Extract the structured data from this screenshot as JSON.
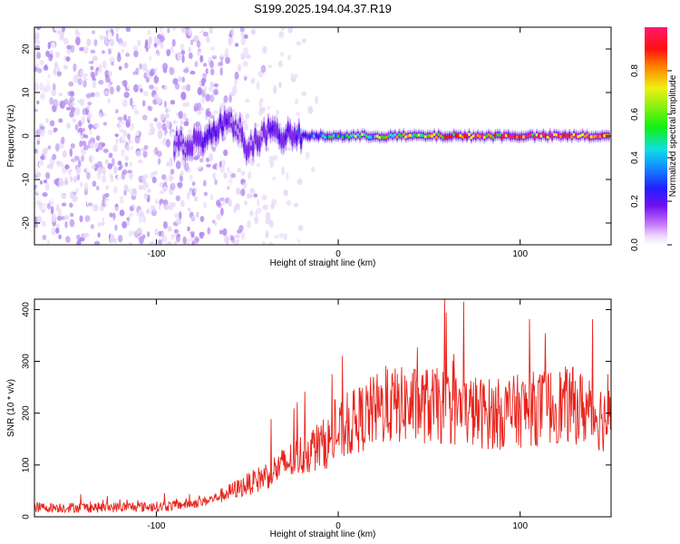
{
  "title": "S199.2025.194.04.37.R19",
  "colors": {
    "snr_line": "#e8241c",
    "spectrogram_colormap": [
      "#ffffff",
      "#e7d8f8",
      "#b48af0",
      "#7a28e8",
      "#4a10f0",
      "#2050ff",
      "#1fd8f0",
      "#22e020",
      "#f0f010",
      "#ff8c00",
      "#ff1010",
      "#ff1a6c"
    ]
  },
  "chart_data": [
    {
      "type": "heatmap",
      "title": "",
      "xlabel": "Height of straight line (km)",
      "ylabel": "Frequency (Hz)",
      "xlim": [
        -167,
        150
      ],
      "ylim": [
        -25,
        25
      ],
      "xticks": [
        -100,
        0,
        100
      ],
      "yticks": [
        -20,
        -10,
        0,
        10,
        20
      ],
      "colorbar": {
        "label": "Normalized spectral amplitude",
        "range": [
          0,
          1
        ],
        "ticks": [
          0.0,
          0.2,
          0.4,
          0.6,
          0.8
        ]
      },
      "ridge": {
        "description_points_x": [
          -85,
          -70,
          -60,
          -55,
          -50,
          -40,
          -30,
          -20,
          0,
          50,
          100,
          150
        ],
        "center_freq_hz": [
          -2,
          0,
          4,
          2,
          -3,
          1,
          0,
          0,
          0,
          0,
          0,
          0
        ],
        "peak_amplitude": [
          0.25,
          0.35,
          0.3,
          0.2,
          0.25,
          0.3,
          0.3,
          0.4,
          0.55,
          0.75,
          0.9,
          0.9
        ]
      }
    },
    {
      "type": "line",
      "title": "",
      "xlabel": "Height of straight line (km)",
      "ylabel": "SNR (10 * v/v)",
      "xlim": [
        -167,
        150
      ],
      "ylim": [
        0,
        420
      ],
      "xticks": [
        -100,
        0,
        100
      ],
      "yticks": [
        0,
        100,
        200,
        300,
        400
      ],
      "series": [
        {
          "x": [
            -167,
            -150,
            -130,
            -110,
            -95,
            -85,
            -75,
            -65,
            -55,
            -45,
            -35,
            -25,
            -15,
            -5,
            0,
            10,
            20,
            30,
            40,
            50,
            60,
            70,
            80,
            90,
            100,
            110,
            120,
            130,
            140,
            150
          ],
          "values": [
            18,
            18,
            18,
            19,
            20,
            24,
            28,
            40,
            55,
            70,
            90,
            110,
            130,
            145,
            160,
            185,
            205,
            215,
            215,
            215,
            210,
            205,
            200,
            198,
            205,
            210,
            215,
            215,
            200,
            185
          ]
        }
      ]
    }
  ]
}
